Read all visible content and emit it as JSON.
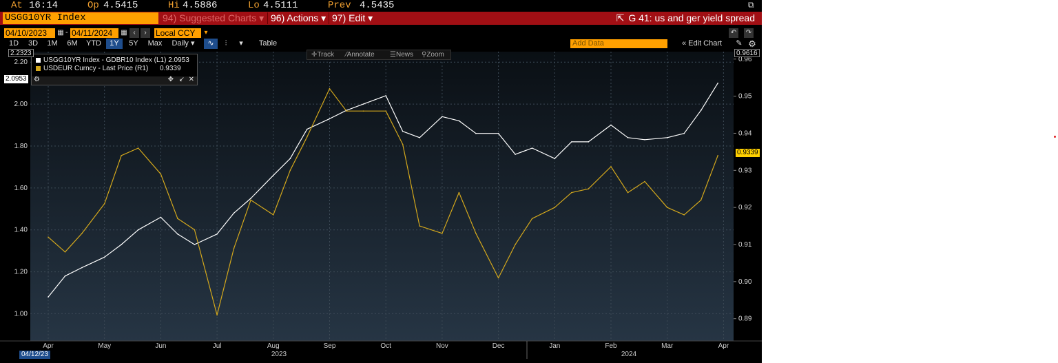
{
  "quote": {
    "at_label": "At",
    "at_value": "16:14",
    "op_label": "Op",
    "op_value": "4.5415",
    "hi_label": "Hi",
    "hi_value": "4.5886",
    "lo_label": "Lo",
    "lo_value": "4.5111",
    "prev_label": "Prev",
    "prev_value": "4.5435"
  },
  "command": {
    "ticker": "USGG10YR Index",
    "suggested": "94) Suggested Charts ▾",
    "actions": "96) Actions ▾",
    "edit": "97) Edit ▾",
    "title": "G 41: us and ger yield spread"
  },
  "dates": {
    "start": "04/10/2023",
    "end": "04/11/2024",
    "currency": "Local CCY"
  },
  "ranges": [
    "1D",
    "3D",
    "1M",
    "6M",
    "YTD",
    "1Y",
    "5Y",
    "Max"
  ],
  "selected_range": "1Y",
  "frequency": "Daily ▾",
  "table_label": "Table",
  "add_data_placeholder": "Add Data",
  "edit_chart_label": "« Edit Chart",
  "tools": {
    "track": "Track",
    "annotate": "Annotate",
    "news": "News",
    "zoom": "Zoom"
  },
  "legend": [
    {
      "name": "USGG10YR Index - GDBR10 Index (L1)",
      "value": "2.0953",
      "color": "#ffffff"
    },
    {
      "name": "USDEUR Curncy - Last Price (R1)",
      "value": "0.9339",
      "color": "#d4a81c"
    }
  ],
  "tags": {
    "left_top": "2.2323",
    "left_last": "2.0953",
    "right_top": "0.9616",
    "right_last": "0.9339"
  },
  "bottom_date": "04/12/23",
  "chart_data": {
    "type": "line",
    "x_ticks": [
      "Apr",
      "May",
      "Jun",
      "Jul",
      "Aug",
      "Sep",
      "Oct",
      "Nov",
      "Dec",
      "Jan",
      "Feb",
      "Mar",
      "Apr"
    ],
    "year_labels": [
      "2023",
      "2024"
    ],
    "left_axis": {
      "ticks": [
        "2.20",
        "2.00",
        "1.80",
        "1.60",
        "1.40",
        "1.20",
        "1.00"
      ],
      "range": [
        0.87,
        2.25
      ]
    },
    "right_axis": {
      "ticks": [
        "0.96",
        "0.95",
        "0.94",
        "0.93",
        "0.92",
        "0.91",
        "0.90",
        "0.89"
      ],
      "range": [
        0.884,
        0.962
      ]
    },
    "series": [
      {
        "name": "USGG10YR Index - GDBR10 Index (L1)",
        "axis": "left",
        "color": "#ffffff",
        "x": [
          0,
          0.3,
          0.6,
          1,
          1.3,
          1.6,
          2,
          2.3,
          2.6,
          3,
          3.3,
          3.6,
          4,
          4.3,
          4.6,
          5,
          5.3,
          5.6,
          6,
          6.3,
          6.6,
          7,
          7.3,
          7.6,
          8,
          8.3,
          8.6,
          9,
          9.3,
          9.6,
          10,
          10.3,
          10.6,
          11,
          11.3,
          11.6,
          11.9
        ],
        "values": [
          1.08,
          1.18,
          1.22,
          1.27,
          1.33,
          1.4,
          1.46,
          1.38,
          1.33,
          1.38,
          1.48,
          1.55,
          1.66,
          1.74,
          1.88,
          1.93,
          1.97,
          2.0,
          2.04,
          1.87,
          1.84,
          1.94,
          1.92,
          1.86,
          1.86,
          1.76,
          1.79,
          1.74,
          1.82,
          1.82,
          1.9,
          1.84,
          1.83,
          1.84,
          1.86,
          1.97,
          2.1
        ]
      },
      {
        "name": "USDEUR Curncy - Last Price (R1)",
        "axis": "right",
        "color": "#d4a81c",
        "x": [
          0,
          0.3,
          0.6,
          1,
          1.3,
          1.6,
          2,
          2.3,
          2.6,
          3,
          3.3,
          3.6,
          4,
          4.3,
          4.6,
          5,
          5.3,
          5.6,
          6,
          6.3,
          6.6,
          7,
          7.3,
          7.6,
          8,
          8.3,
          8.6,
          9,
          9.3,
          9.6,
          10,
          10.3,
          10.6,
          11,
          11.3,
          11.6,
          11.9
        ],
        "values": [
          0.912,
          0.908,
          0.913,
          0.921,
          0.934,
          0.936,
          0.929,
          0.917,
          0.914,
          0.891,
          0.909,
          0.922,
          0.918,
          0.93,
          0.939,
          0.952,
          0.946,
          0.946,
          0.946,
          0.937,
          0.915,
          0.913,
          0.924,
          0.913,
          0.901,
          0.91,
          0.917,
          0.92,
          0.924,
          0.925,
          0.931,
          0.924,
          0.927,
          0.92,
          0.918,
          0.922,
          0.934
        ]
      }
    ],
    "grid": true
  }
}
